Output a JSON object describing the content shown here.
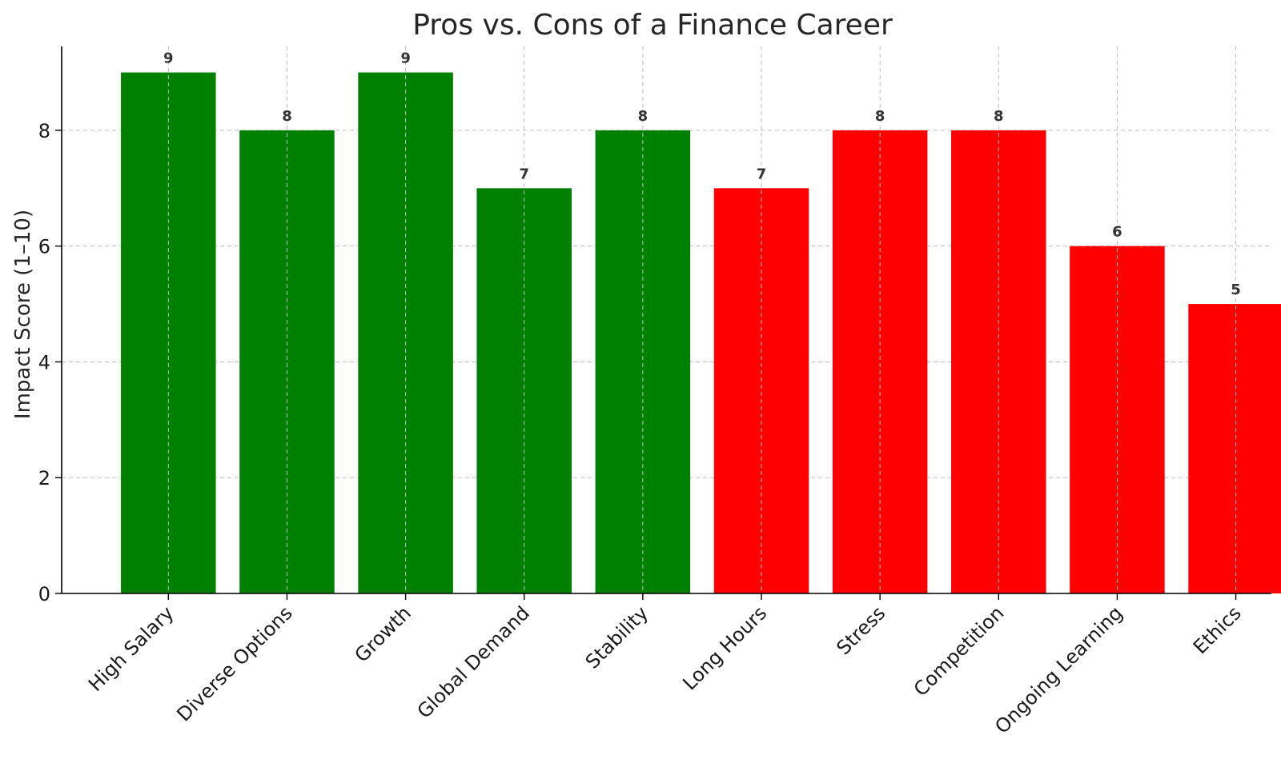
{
  "chart_data": {
    "type": "bar",
    "title": "Pros vs. Cons of a Finance Career",
    "xlabel": "",
    "ylabel": "Impact Score (1–10)",
    "categories": [
      "High Salary",
      "Diverse Options",
      "Growth",
      "Global Demand",
      "Stability",
      "Long Hours",
      "Stress",
      "Competition",
      "Ongoing Learning",
      "Ethics"
    ],
    "values": [
      9,
      8,
      9,
      7,
      8,
      7,
      8,
      8,
      6,
      5
    ],
    "bar_colors": [
      "#008000",
      "#008000",
      "#008000",
      "#008000",
      "#008000",
      "#ff0000",
      "#ff0000",
      "#ff0000",
      "#ff0000",
      "#ff0000"
    ],
    "ylim": [
      0,
      9.45
    ],
    "yticks": [
      0,
      2,
      4,
      6,
      8
    ],
    "grid": true,
    "data_labels": true
  }
}
